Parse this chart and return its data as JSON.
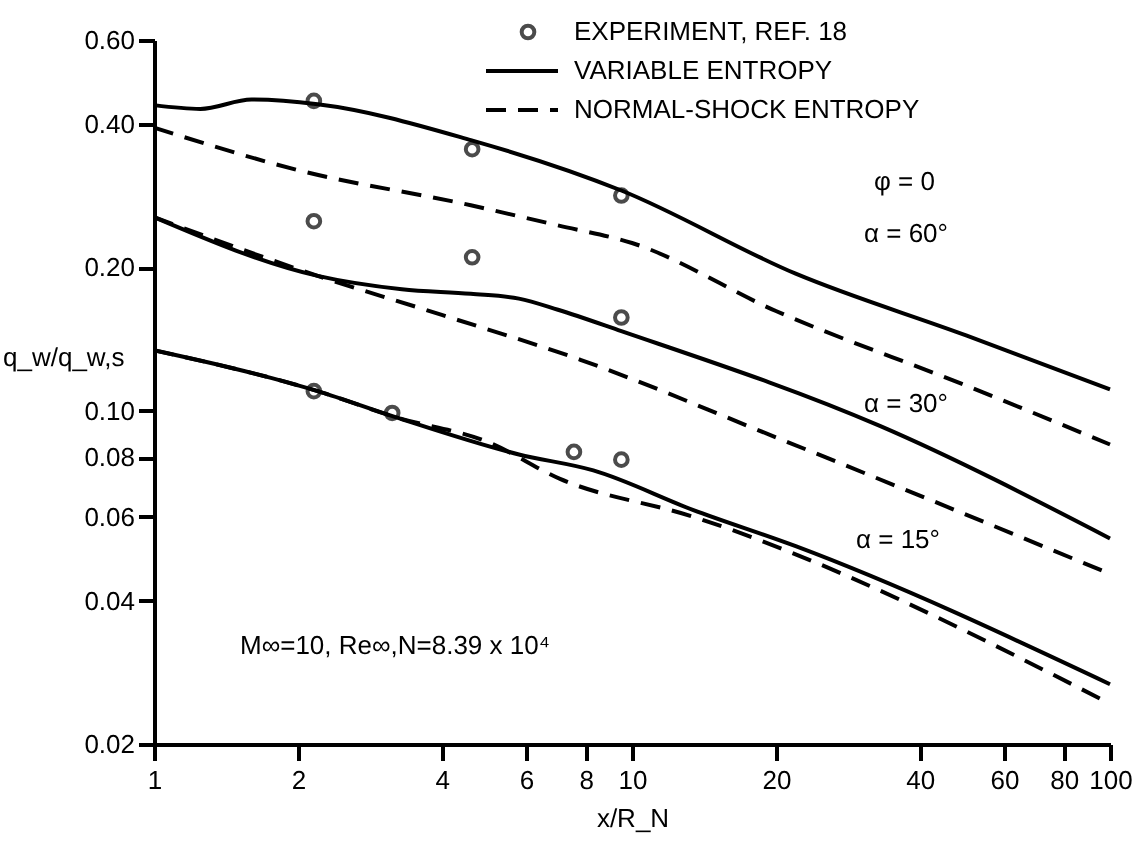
{
  "chart_data": {
    "type": "line",
    "xlabel": "x/R_N",
    "ylabel": "q_w/q_w,s",
    "log": "xy",
    "grid": false,
    "legend": "top right",
    "xlim": [
      1,
      100
    ],
    "xticks": [
      1,
      2,
      4,
      6,
      8,
      10,
      20,
      40,
      60,
      80,
      100
    ],
    "ylim": [
      0.02,
      0.6
    ],
    "yticks": [
      0.02,
      0.04,
      0.06,
      0.08,
      {
        "value": 0.1,
        "label": "0.10"
      },
      {
        "value": 0.2,
        "label": "0.20"
      },
      {
        "value": 0.4,
        "label": "0.40"
      },
      {
        "value": 0.6,
        "label": "0.60"
      }
    ],
    "annotations": [
      "φ = 0",
      "M∞=10, Re∞,N=8.39 x 10⁴",
      "α = 60°",
      "α = 30°",
      "α = 15°"
    ],
    "series": [
      {
        "type": "scatter",
        "name": "EXPERIMENT, REF. 18",
        "marker": "circle",
        "color": "#000000",
        "x": [
          2.16,
          4.63,
          9.5,
          2.16,
          4.63,
          9.5,
          2.16,
          3.15,
          7.56,
          9.5
        ],
        "values": [
          0.447,
          0.354,
          0.283,
          0.25,
          0.21,
          0.157,
          0.11,
          0.099,
          0.082,
          0.079
        ]
      },
      {
        "name": "VARIABLE ENTROPY",
        "line_style": "solid",
        "color": "#000000",
        "x": [
          1,
          1.25,
          1.6,
          2.2,
          4.6,
          9.5,
          22,
          50,
          100
        ],
        "values": [
          0.438,
          0.43,
          0.45,
          0.44,
          0.37,
          0.29,
          0.194,
          0.144,
          0.111
        ]
      },
      {
        "name": "NORMAL-SHOCK ENTROPY",
        "line_style": "dashed",
        "color": "#000000",
        "x": [
          1,
          2,
          4.6,
          7,
          10,
          20,
          50,
          100
        ],
        "values": [
          0.393,
          0.32,
          0.27,
          0.245,
          0.225,
          0.162,
          0.113,
          0.085
        ]
      },
      {
        "line_style": "solid",
        "color": "#000000",
        "x": [
          1,
          2.2,
          3.3,
          4.6,
          5.8,
          7,
          9.5,
          33,
          100
        ],
        "values": [
          0.255,
          0.192,
          0.18,
          0.176,
          0.172,
          0.163,
          0.147,
          0.093,
          0.054
        ]
      },
      {
        "line_style": "dashed",
        "color": "#000000",
        "x": [
          1,
          2.2,
          4,
          7.8,
          20,
          100
        ],
        "values": [
          0.255,
          0.192,
          0.159,
          0.128,
          0.088,
          0.0455
        ]
      },
      {
        "line_style": "solid",
        "color": "#000000",
        "x": [
          1,
          2.2,
          3.2,
          5.8,
          8.3,
          13.4,
          22,
          100
        ],
        "values": [
          0.134,
          0.11,
          0.097,
          0.081,
          0.075,
          0.062,
          0.052,
          0.0267
        ]
      },
      {
        "line_style": "dashed",
        "color": "#000000",
        "x": [
          1,
          2.2,
          3.2,
          5,
          7.07,
          13.4,
          100
        ],
        "values": [
          0.134,
          0.11,
          0.097,
          0.086,
          0.072,
          0.06,
          0.0243
        ]
      }
    ]
  }
}
